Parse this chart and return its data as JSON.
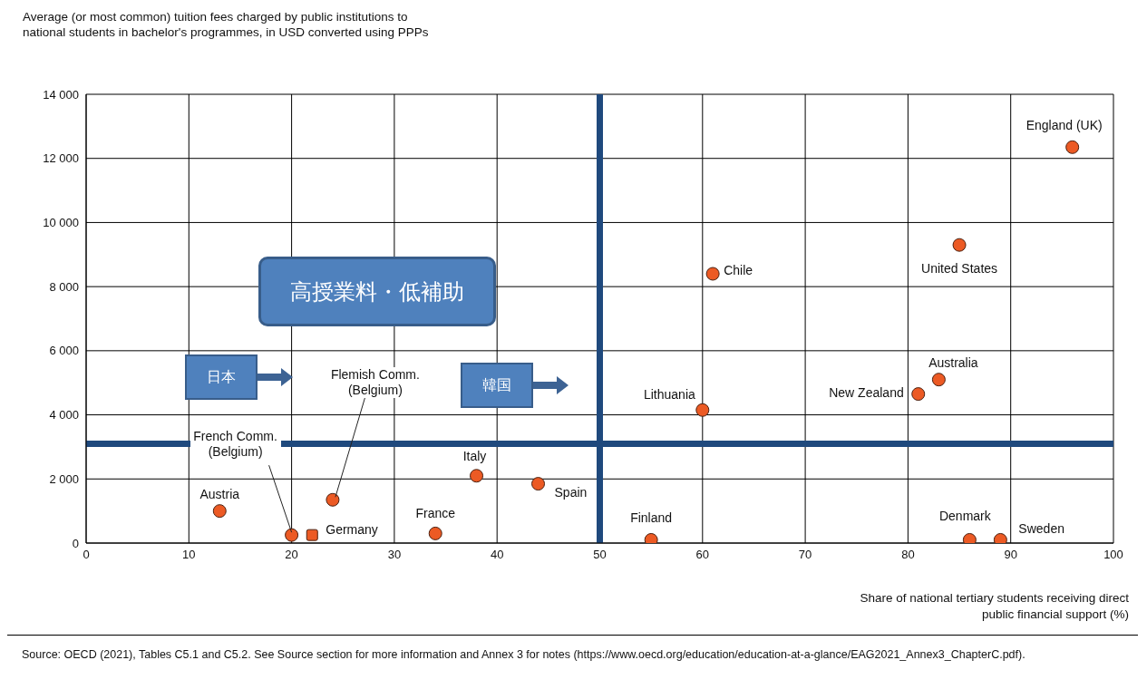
{
  "chart_data": {
    "type": "scatter",
    "ylabel": "Average (or most common) tuition fees charged by public institutions to national students in bachelor's programmes, in USD converted using PPPs",
    "xlabel": "Share of national tertiary students receiving direct public financial support (%)",
    "xlim": [
      0,
      100
    ],
    "xticks": [
      0,
      10,
      20,
      30,
      40,
      50,
      60,
      70,
      80,
      90,
      100
    ],
    "ylim": [
      0,
      14000
    ],
    "yticks": [
      {
        "value": 0,
        "label": "0"
      },
      {
        "value": 2000,
        "label": "2 000"
      },
      {
        "value": 4000,
        "label": "4 000"
      },
      {
        "value": 6000,
        "label": "6 000"
      },
      {
        "value": 8000,
        "label": "8 000"
      },
      {
        "value": 10000,
        "label": "10 000"
      },
      {
        "value": 12000,
        "label": "12 000"
      },
      {
        "value": 14000,
        "label": "14 000"
      }
    ],
    "grid": true,
    "marker": "circle",
    "series": [
      {
        "color": "#ec5a24",
        "x": [
          13,
          20,
          24,
          34,
          38,
          44,
          55,
          60,
          61,
          85,
          81,
          83,
          86,
          89,
          96
        ],
        "values": [
          1000,
          250,
          1350,
          300,
          2100,
          1850,
          100,
          4150,
          8400,
          9300,
          4650,
          5100,
          100,
          100,
          12350
        ]
      },
      {
        "color": "#ec5a24",
        "marker": "square",
        "x": [
          22
        ],
        "values": [
          250
        ]
      }
    ],
    "ref_lines": [
      {
        "axis": "x",
        "value": 50,
        "color": "#1f497d"
      },
      {
        "axis": "y",
        "value": 3100,
        "color": "#1f497d"
      }
    ],
    "annotations": [
      "高授業料・低補助",
      "日本",
      "韓国",
      {
        "text": "Austria",
        "x": 13,
        "y": 1000
      },
      {
        "text": "French Comm. (Belgium)",
        "x": 20,
        "y": 250
      },
      {
        "text": "Flemish Comm. (Belgium)",
        "x": 24,
        "y": 1350
      },
      {
        "text": "Germany",
        "x": 22,
        "y": 250
      },
      {
        "text": "France",
        "x": 34,
        "y": 300
      },
      {
        "text": "Italy",
        "x": 38,
        "y": 2100
      },
      {
        "text": "Spain",
        "x": 44,
        "y": 1850
      },
      {
        "text": "Finland",
        "x": 55,
        "y": 100
      },
      {
        "text": "Lithuania",
        "x": 60,
        "y": 4150
      },
      {
        "text": "Chile",
        "x": 61,
        "y": 8400
      },
      {
        "text": "United States",
        "x": 85,
        "y": 9300
      },
      {
        "text": "New Zealand",
        "x": 81,
        "y": 4650
      },
      {
        "text": "Australia",
        "x": 83,
        "y": 5100
      },
      {
        "text": "Denmark",
        "x": 86,
        "y": 100
      },
      {
        "text": "Sweden",
        "x": 89,
        "y": 100
      },
      {
        "text": "England (UK)",
        "x": 96,
        "y": 12350
      },
      "Source: OECD (2021), Tables C5.1 and C5.2. See Source section for more information and Annex 3 for notes (https://www.oecd.org/education/education-at-a-glance/EAG2021_Annex3_ChapterC.pdf)."
    ]
  }
}
